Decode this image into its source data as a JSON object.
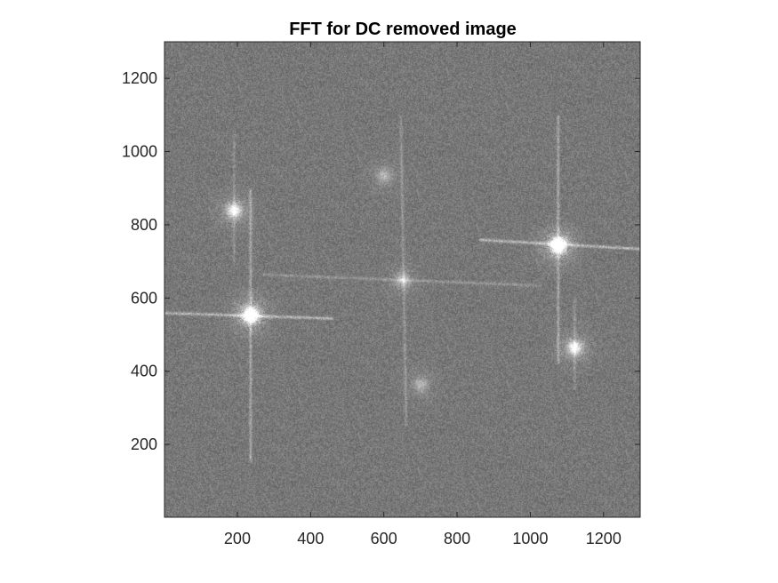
{
  "chart_data": {
    "type": "heatmap",
    "title": "FFT for DC removed image",
    "xlabel": "",
    "ylabel": "",
    "xlim": [
      1,
      1300
    ],
    "ylim": [
      1,
      1300
    ],
    "x_ticks": [
      200,
      400,
      600,
      800,
      1000,
      1200
    ],
    "y_ticks": [
      200,
      400,
      600,
      800,
      1000,
      1200
    ],
    "colormap": "gray",
    "background_intensity": "#787878",
    "grid": false,
    "features": {
      "bright_peaks": [
        {
          "x": 235,
          "y": 555,
          "strength": 1.0
        },
        {
          "x": 1075,
          "y": 745,
          "strength": 1.0
        },
        {
          "x": 190,
          "y": 840,
          "strength": 0.55
        },
        {
          "x": 1120,
          "y": 465,
          "strength": 0.55
        },
        {
          "x": 650,
          "y": 650,
          "strength": 0.3
        },
        {
          "x": 600,
          "y": 935,
          "strength": 0.25
        },
        {
          "x": 700,
          "y": 365,
          "strength": 0.25
        }
      ],
      "streaks": [
        {
          "x1": 1,
          "y1": 560,
          "x2": 460,
          "y2": 545,
          "strength": 0.75
        },
        {
          "x1": 860,
          "y1": 760,
          "x2": 1300,
          "y2": 735,
          "strength": 0.75
        },
        {
          "x1": 270,
          "y1": 665,
          "x2": 1030,
          "y2": 635,
          "strength": 0.35
        },
        {
          "x1": 235,
          "y1": 150,
          "x2": 235,
          "y2": 900,
          "strength": 0.55
        },
        {
          "x1": 1075,
          "y1": 420,
          "x2": 1075,
          "y2": 1100,
          "strength": 0.55
        },
        {
          "x1": 660,
          "y1": 250,
          "x2": 645,
          "y2": 1100,
          "strength": 0.35
        },
        {
          "x1": 190,
          "y1": 700,
          "x2": 190,
          "y2": 1050,
          "strength": 0.3
        },
        {
          "x1": 1120,
          "y1": 350,
          "x2": 1120,
          "y2": 600,
          "strength": 0.3
        }
      ]
    }
  }
}
